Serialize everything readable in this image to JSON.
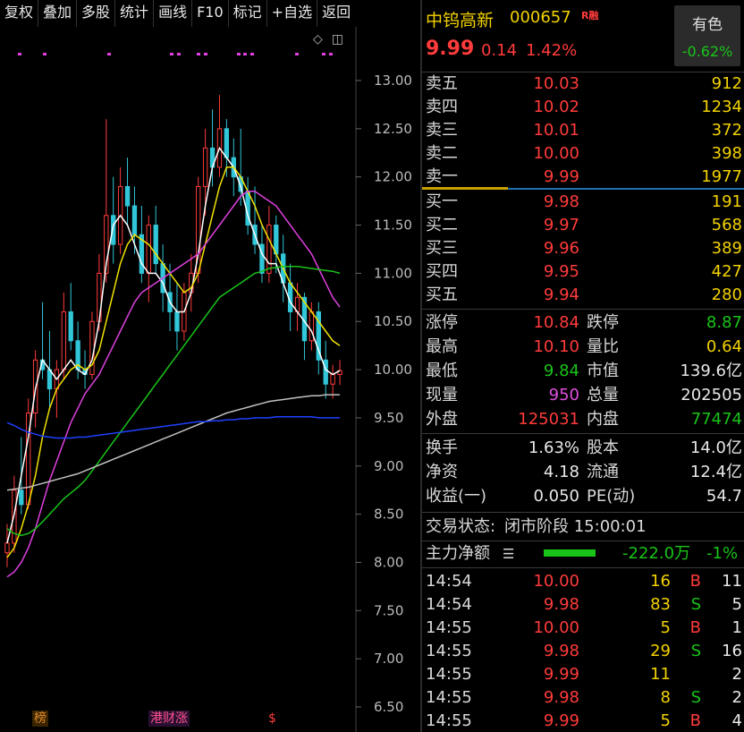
{
  "toolbar": {
    "items": [
      "复权",
      "叠加",
      "多股",
      "统计",
      "画线",
      "F10",
      "标记",
      "+自选",
      "返回"
    ]
  },
  "chart": {
    "y_ticks": [
      "13.00",
      "12.50",
      "12.00",
      "11.50",
      "11.00",
      "10.50",
      "10.00",
      "9.50",
      "9.00",
      "8.50",
      "8.00",
      "7.50",
      "7.00",
      "6.50"
    ],
    "markers": {
      "bang": "榜",
      "gang": "港财涨",
      "s": "$"
    },
    "colors": {
      "up": "#ff3b3b",
      "down": "#31c6d8",
      "ma5": "#ffffff",
      "ma10": "#f2e200",
      "ma20": "#e040e0",
      "ma60": "#19c419",
      "ma120": "#c0c0c0",
      "ma250": "#2040ff"
    }
  },
  "chart_data": {
    "type": "candlestick",
    "y_range": [
      6.5,
      13.0
    ],
    "ohlc": [
      [
        8.1,
        8.4,
        7.95,
        8.2
      ],
      [
        8.2,
        8.9,
        8.1,
        8.75
      ],
      [
        8.75,
        9.3,
        8.5,
        8.6
      ],
      [
        8.6,
        9.7,
        8.55,
        9.55
      ],
      [
        9.55,
        10.2,
        9.4,
        10.1
      ],
      [
        10.1,
        10.7,
        9.9,
        10.0
      ],
      [
        10.0,
        10.4,
        9.6,
        9.8
      ],
      [
        9.8,
        10.1,
        9.5,
        10.0
      ],
      [
        10.0,
        10.8,
        9.9,
        10.6
      ],
      [
        10.6,
        10.9,
        10.2,
        10.3
      ],
      [
        10.3,
        10.5,
        9.9,
        10.0
      ],
      [
        10.0,
        10.2,
        9.8,
        9.95
      ],
      [
        9.95,
        10.6,
        9.9,
        10.5
      ],
      [
        10.5,
        11.2,
        10.4,
        11.0
      ],
      [
        11.0,
        12.6,
        10.9,
        11.6
      ],
      [
        11.6,
        12.0,
        11.1,
        11.3
      ],
      [
        11.3,
        12.1,
        11.2,
        11.9
      ],
      [
        11.9,
        12.2,
        11.5,
        11.7
      ],
      [
        11.7,
        11.9,
        11.2,
        11.4
      ],
      [
        11.4,
        11.7,
        10.9,
        11.0
      ],
      [
        11.0,
        11.6,
        10.7,
        11.5
      ],
      [
        11.5,
        11.7,
        11.0,
        11.1
      ],
      [
        11.1,
        11.3,
        10.6,
        10.8
      ],
      [
        10.8,
        11.1,
        10.4,
        10.6
      ],
      [
        10.6,
        10.9,
        10.2,
        10.4
      ],
      [
        10.4,
        10.9,
        10.3,
        10.8
      ],
      [
        10.8,
        11.2,
        10.6,
        11.0
      ],
      [
        11.0,
        12.0,
        10.9,
        11.9
      ],
      [
        11.9,
        12.5,
        11.6,
        12.3
      ],
      [
        12.3,
        12.7,
        11.9,
        12.1
      ],
      [
        12.1,
        12.85,
        12.0,
        12.5
      ],
      [
        12.5,
        12.6,
        12.0,
        12.2
      ],
      [
        12.2,
        12.4,
        11.8,
        12.0
      ],
      [
        12.0,
        12.5,
        11.7,
        11.85
      ],
      [
        11.85,
        12.0,
        11.4,
        11.5
      ],
      [
        11.5,
        11.9,
        11.2,
        11.3
      ],
      [
        11.3,
        11.5,
        10.9,
        11.0
      ],
      [
        11.0,
        11.7,
        10.9,
        11.5
      ],
      [
        11.5,
        11.6,
        11.0,
        11.2
      ],
      [
        11.2,
        11.4,
        10.7,
        10.9
      ],
      [
        10.9,
        11.1,
        10.4,
        10.6
      ],
      [
        10.6,
        10.9,
        10.4,
        10.75
      ],
      [
        10.75,
        10.8,
        10.1,
        10.3
      ],
      [
        10.3,
        10.7,
        10.2,
        10.6
      ],
      [
        10.6,
        10.7,
        9.95,
        10.1
      ],
      [
        10.1,
        10.3,
        9.7,
        9.85
      ],
      [
        9.85,
        10.05,
        9.7,
        9.95
      ],
      [
        9.95,
        10.1,
        9.84,
        9.99
      ]
    ],
    "ma_lines": {
      "ma5": [
        8.2,
        8.5,
        8.9,
        9.3,
        9.8,
        10.1,
        10.0,
        9.9,
        10.0,
        10.1,
        10.0,
        9.95,
        10.1,
        10.5,
        11.1,
        11.5,
        11.6,
        11.5,
        11.3,
        11.1,
        11.0,
        11.0,
        10.9,
        10.7,
        10.6,
        10.6,
        10.8,
        11.2,
        11.7,
        12.1,
        12.3,
        12.2,
        12.1,
        11.9,
        11.6,
        11.4,
        11.2,
        11.1,
        11.1,
        10.9,
        10.7,
        10.6,
        10.5,
        10.4,
        10.2,
        10.0,
        9.95,
        9.99
      ],
      "ma10": [
        8.05,
        8.15,
        8.35,
        8.6,
        8.9,
        9.3,
        9.6,
        9.8,
        9.9,
        10.0,
        10.05,
        10.0,
        10.05,
        10.2,
        10.5,
        10.8,
        11.1,
        11.3,
        11.4,
        11.35,
        11.3,
        11.2,
        11.1,
        11.0,
        10.9,
        10.8,
        10.85,
        11.0,
        11.3,
        11.6,
        11.9,
        12.1,
        12.1,
        12.0,
        11.85,
        11.7,
        11.5,
        11.35,
        11.2,
        11.05,
        10.9,
        10.8,
        10.7,
        10.6,
        10.5,
        10.4,
        10.3,
        10.25
      ],
      "ma20": [
        7.85,
        7.9,
        8.0,
        8.15,
        8.35,
        8.6,
        8.85,
        9.05,
        9.25,
        9.45,
        9.6,
        9.75,
        9.85,
        9.95,
        10.1,
        10.25,
        10.4,
        10.55,
        10.7,
        10.8,
        10.85,
        10.9,
        10.95,
        11.0,
        11.05,
        11.1,
        11.15,
        11.2,
        11.3,
        11.4,
        11.5,
        11.6,
        11.7,
        11.8,
        11.85,
        11.85,
        11.8,
        11.75,
        11.7,
        11.6,
        11.5,
        11.4,
        11.3,
        11.2,
        11.05,
        10.9,
        10.75,
        10.65
      ],
      "ma60": [
        8.35,
        8.3,
        8.28,
        8.3,
        8.35,
        8.42,
        8.5,
        8.58,
        8.66,
        8.72,
        8.78,
        8.85,
        8.95,
        9.05,
        9.15,
        9.25,
        9.35,
        9.45,
        9.55,
        9.65,
        9.75,
        9.85,
        9.95,
        10.05,
        10.15,
        10.25,
        10.35,
        10.45,
        10.55,
        10.65,
        10.75,
        10.8,
        10.85,
        10.9,
        10.95,
        11.0,
        11.02,
        11.05,
        11.06,
        11.07,
        11.07,
        11.07,
        11.06,
        11.05,
        11.04,
        11.03,
        11.02,
        11.0
      ],
      "ma120": [
        8.75,
        8.76,
        8.77,
        8.78,
        8.8,
        8.82,
        8.84,
        8.86,
        8.88,
        8.9,
        8.92,
        8.95,
        8.98,
        9.01,
        9.04,
        9.07,
        9.1,
        9.13,
        9.16,
        9.19,
        9.22,
        9.25,
        9.28,
        9.31,
        9.34,
        9.37,
        9.4,
        9.43,
        9.46,
        9.49,
        9.52,
        9.55,
        9.57,
        9.59,
        9.61,
        9.63,
        9.65,
        9.67,
        9.68,
        9.69,
        9.7,
        9.71,
        9.72,
        9.73,
        9.73,
        9.74,
        9.74,
        9.74
      ],
      "ma250": [
        9.45,
        9.42,
        9.38,
        9.35,
        9.33,
        9.31,
        9.3,
        9.29,
        9.29,
        9.29,
        9.3,
        9.3,
        9.31,
        9.32,
        9.33,
        9.34,
        9.35,
        9.36,
        9.37,
        9.38,
        9.39,
        9.4,
        9.41,
        9.42,
        9.43,
        9.44,
        9.45,
        9.46,
        9.46,
        9.47,
        9.47,
        9.48,
        9.48,
        9.49,
        9.49,
        9.5,
        9.5,
        9.5,
        9.51,
        9.51,
        9.51,
        9.51,
        9.51,
        9.51,
        9.5,
        9.5,
        9.5,
        9.5
      ]
    }
  },
  "quote": {
    "name": "中钨高新",
    "code": "000657",
    "tag": "R融",
    "price": "9.99",
    "change": "0.14",
    "change_pct": "1.42%",
    "sector": {
      "name": "有色",
      "pct": "-0.62%"
    },
    "asks": [
      {
        "label": "卖五",
        "price": "10.03",
        "vol": "912"
      },
      {
        "label": "卖四",
        "price": "10.02",
        "vol": "1234"
      },
      {
        "label": "卖三",
        "price": "10.01",
        "vol": "372"
      },
      {
        "label": "卖二",
        "price": "10.00",
        "vol": "398"
      },
      {
        "label": "卖一",
        "price": "9.99",
        "vol": "1977"
      }
    ],
    "bids": [
      {
        "label": "买一",
        "price": "9.98",
        "vol": "191"
      },
      {
        "label": "买二",
        "price": "9.97",
        "vol": "568"
      },
      {
        "label": "买三",
        "price": "9.96",
        "vol": "389"
      },
      {
        "label": "买四",
        "price": "9.95",
        "vol": "427"
      },
      {
        "label": "买五",
        "price": "9.94",
        "vol": "280"
      }
    ],
    "stats": [
      {
        "l1": "涨停",
        "v1": "10.84",
        "l2": "跌停",
        "v2": "8.87"
      },
      {
        "l1": "最高",
        "v1": "10.10",
        "l2": "量比",
        "v2": "0.64"
      },
      {
        "l1": "最低",
        "v1": "9.84",
        "l2": "市值",
        "v2": "139.6亿"
      },
      {
        "l1": "现量",
        "v1": "950",
        "l2": "总量",
        "v2": "202505"
      },
      {
        "l1": "外盘",
        "v1": "125031",
        "l2": "内盘",
        "v2": "77474"
      }
    ],
    "fundamentals": [
      {
        "l1": "换手",
        "v1": "1.63%",
        "l2": "股本",
        "v2": "14.0亿"
      },
      {
        "l1": "净资",
        "v1": "4.18",
        "l2": "流通",
        "v2": "12.4亿"
      },
      {
        "l1": "收益(一)",
        "v1": "0.050",
        "l2": "PE(动)",
        "v2": "54.7"
      }
    ],
    "status_label": "交易状态:",
    "status_value": "闭市阶段 15:00:01",
    "main_flow_label": "主力净额",
    "main_flow_value": "-222.0万",
    "main_flow_pct": "-1%",
    "ticks": [
      {
        "time": "14:54",
        "price": "10.00",
        "vol": "16",
        "side": "B",
        "num": "11"
      },
      {
        "time": "14:54",
        "price": "9.98",
        "vol": "83",
        "side": "S",
        "num": "5"
      },
      {
        "time": "14:55",
        "price": "10.00",
        "vol": "5",
        "side": "B",
        "num": "1"
      },
      {
        "time": "14:55",
        "price": "9.98",
        "vol": "29",
        "side": "S",
        "num": "16"
      },
      {
        "time": "14:55",
        "price": "9.99",
        "vol": "11",
        "side": "",
        "num": "2"
      },
      {
        "time": "14:55",
        "price": "9.98",
        "vol": "8",
        "side": "S",
        "num": "2"
      },
      {
        "time": "14:55",
        "price": "9.99",
        "vol": "5",
        "side": "B",
        "num": "4"
      }
    ]
  }
}
